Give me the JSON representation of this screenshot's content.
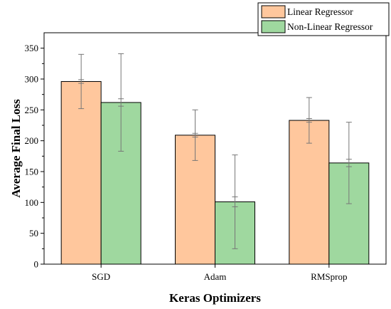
{
  "chart_data": {
    "type": "bar",
    "title": "",
    "xlabel": "Keras Optimizers",
    "ylabel": "Average Final Loss",
    "categories": [
      "SGD",
      "Adam",
      "RMSprop"
    ],
    "ylim": [
      0,
      375
    ],
    "yticks": [
      0,
      50,
      100,
      150,
      200,
      250,
      300,
      350
    ],
    "legend_position": "top-right",
    "grid": false,
    "series": [
      {
        "name": "Linear Regressor",
        "color": "#FFC79D",
        "values": [
          296,
          209,
          233
        ],
        "error_low": [
          252,
          168,
          196
        ],
        "error_high": [
          340,
          250,
          270
        ],
        "inner_low": [
          293,
          206,
          230
        ],
        "inner_high": [
          299,
          212,
          236
        ]
      },
      {
        "name": "Non-Linear Regressor",
        "color": "#9FD89F",
        "values": [
          262,
          101,
          164
        ],
        "error_low": [
          183,
          25,
          98
        ],
        "error_high": [
          341,
          177,
          230
        ],
        "inner_low": [
          256,
          93,
          158
        ],
        "inner_high": [
          268,
          109,
          170
        ]
      }
    ]
  }
}
